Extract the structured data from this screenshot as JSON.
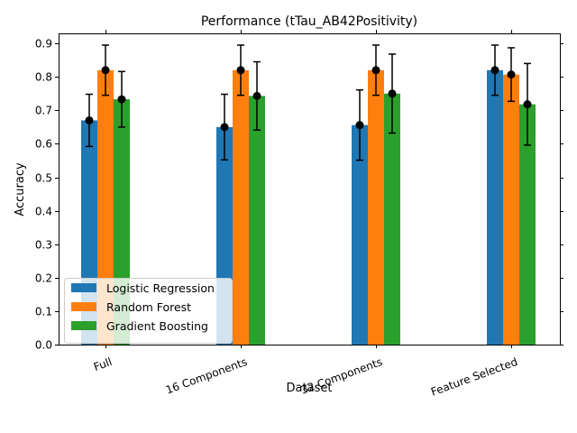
{
  "chart_data": {
    "type": "bar",
    "title": "Performance (tTau_AB42Positivity)",
    "xlabel": "Dataset",
    "ylabel": "Accuracy",
    "categories": [
      "Full",
      "16 Components",
      "32 Components",
      "Feature Selected"
    ],
    "ylim": [
      0,
      0.93
    ],
    "yticks": [
      0.0,
      0.1,
      0.2,
      0.3,
      0.4,
      0.5,
      0.6,
      0.7,
      0.8,
      0.9
    ],
    "ytick_labels": [
      "0.0",
      "0.1",
      "0.2",
      "0.3",
      "0.4",
      "0.5",
      "0.6",
      "0.7",
      "0.8",
      "0.9"
    ],
    "x_tick_rotation_deg": 20,
    "grid": false,
    "legend_position": "lower-left",
    "error_bars": true,
    "series": [
      {
        "name": "Logistic Regression",
        "color": "#1f77b4",
        "values": [
          0.67,
          0.65,
          0.656,
          0.82
        ],
        "errors": [
          0.078,
          0.098,
          0.105,
          0.075
        ]
      },
      {
        "name": "Random Forest",
        "color": "#ff7f0e",
        "values": [
          0.82,
          0.82,
          0.82,
          0.807
        ],
        "errors": [
          0.075,
          0.075,
          0.075,
          0.08
        ]
      },
      {
        "name": "Gradient Boosting",
        "color": "#2ca02c",
        "values": [
          0.733,
          0.743,
          0.75,
          0.718
        ],
        "errors": [
          0.083,
          0.102,
          0.118,
          0.122
        ]
      }
    ],
    "marker_color": "#000000"
  }
}
